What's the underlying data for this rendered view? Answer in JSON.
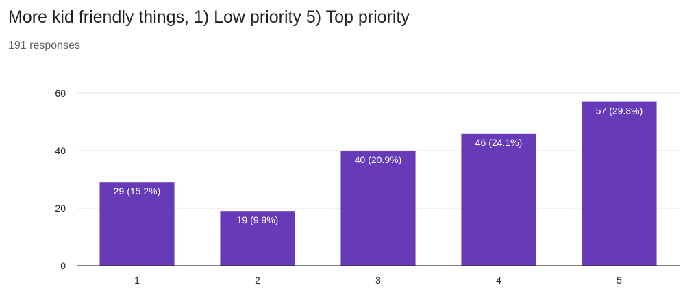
{
  "header": {
    "title": "More kid friendly things, 1) Low priority 5) Top priority",
    "responses": "191 responses"
  },
  "colors": {
    "bar": "#673ab7",
    "grid": "#e6e6e6",
    "axis": "#333333",
    "label_text": "#ffffff"
  },
  "chart_data": {
    "type": "bar",
    "categories": [
      "1",
      "2",
      "3",
      "4",
      "5"
    ],
    "values": [
      29,
      19,
      40,
      46,
      57
    ],
    "data_labels": [
      "29 (15.2%)",
      "19 (9.9%)",
      "40 (20.9%)",
      "46 (24.1%)",
      "57 (29.8%)"
    ],
    "y_ticks": [
      "0",
      "20",
      "40",
      "60"
    ],
    "ylim": [
      0,
      60
    ],
    "xlabel": "",
    "ylabel": "",
    "grid": true,
    "legend": "none"
  }
}
